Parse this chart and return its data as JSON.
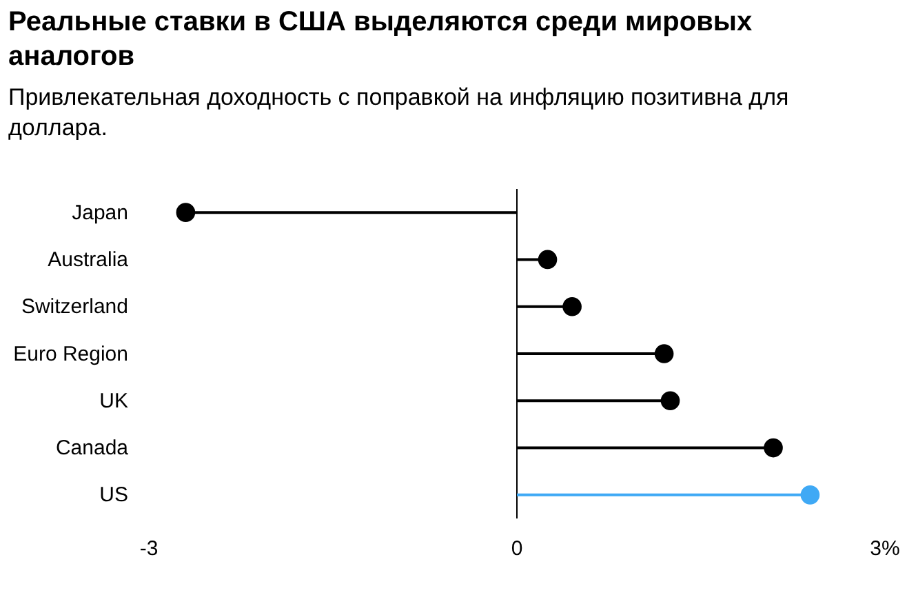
{
  "chart_data": {
    "type": "lollipop",
    "orientation": "horizontal",
    "title": "Реальные ставки в США выделяются среди мировых аналогов",
    "subtitle": "Привлекательная доходность с поправкой на инфляцию позитивна для доллара.",
    "categories": [
      "Japan",
      "Australia",
      "Switzerland",
      "Euro Region",
      "UK",
      "Canada",
      "US"
    ],
    "values": [
      -2.7,
      0.25,
      0.45,
      1.2,
      1.25,
      2.09,
      2.39
    ],
    "colors": [
      "#000000",
      "#000000",
      "#000000",
      "#000000",
      "#000000",
      "#000000",
      "#3fa9f5"
    ],
    "xlim": [
      -3,
      3
    ],
    "xticks": [
      -3,
      0,
      {
        "value": 3,
        "label": "3%"
      }
    ],
    "ref_lines": [
      {
        "axis": "x",
        "value": 0,
        "color": "#000000"
      }
    ],
    "marker": "circle"
  }
}
